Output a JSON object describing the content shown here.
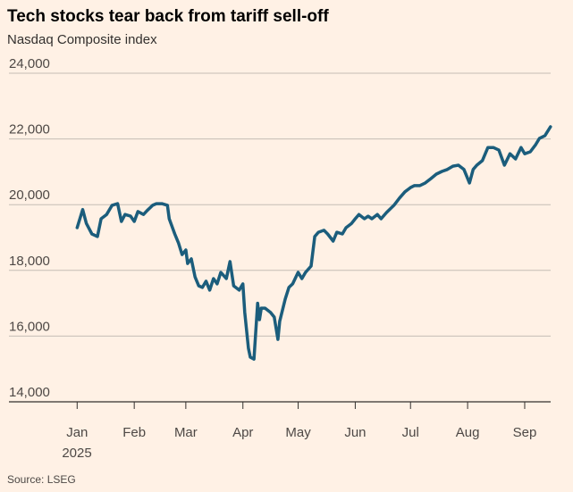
{
  "chart_data": {
    "type": "line",
    "title": "Tech stocks tear back from tariff sell-off",
    "subtitle": "Nasdaq Composite index",
    "source": "Source: LSEG",
    "year_label": "2025",
    "xlim": [
      -5,
      260
    ],
    "xticks": [
      {
        "value": 0,
        "label": "Jan"
      },
      {
        "value": 31,
        "label": "Feb"
      },
      {
        "value": 59,
        "label": "Mar"
      },
      {
        "value": 90,
        "label": "Apr"
      },
      {
        "value": 120,
        "label": "May"
      },
      {
        "value": 151,
        "label": "Jun"
      },
      {
        "value": 181,
        "label": "Jul"
      },
      {
        "value": 212,
        "label": "Aug"
      },
      {
        "value": 243,
        "label": "Sep"
      }
    ],
    "ylim": [
      14000,
      24000
    ],
    "yticks": [
      {
        "value": 14000,
        "label": "14,000"
      },
      {
        "value": 16000,
        "label": "16,000"
      },
      {
        "value": 18000,
        "label": "18,000"
      },
      {
        "value": 20000,
        "label": "20,000"
      },
      {
        "value": 22000,
        "label": "22,000"
      },
      {
        "value": 24000,
        "label": "24,000"
      }
    ],
    "grid": true,
    "x": [
      0,
      3,
      5,
      8,
      11,
      13,
      16,
      19,
      22,
      24,
      26,
      29,
      31,
      33,
      36,
      38,
      41,
      43,
      46,
      49,
      50,
      53,
      55,
      57,
      59,
      60,
      62,
      64,
      66,
      68,
      70,
      72,
      74,
      76,
      78,
      81,
      83,
      85,
      88,
      90,
      91,
      93,
      94,
      96,
      98,
      99,
      100,
      102,
      105,
      107,
      109,
      110,
      113,
      115,
      117,
      120,
      122,
      124,
      127,
      129,
      131,
      134,
      136,
      139,
      141,
      144,
      146,
      149,
      151,
      153,
      156,
      158,
      160,
      163,
      165,
      168,
      172,
      175,
      178,
      181,
      183,
      186,
      189,
      192,
      195,
      198,
      201,
      204,
      207,
      210,
      213,
      215,
      217,
      220,
      223,
      226,
      229,
      232,
      235,
      238,
      241,
      243,
      246,
      249,
      251,
      254,
      257
    ],
    "series": [
      {
        "name": "Nasdaq Composite",
        "color": "#1b5d7c",
        "values": [
          19300,
          19850,
          19430,
          19110,
          19030,
          19570,
          19700,
          19980,
          20030,
          19490,
          19700,
          19650,
          19490,
          19790,
          19700,
          19820,
          19980,
          20030,
          20030,
          19980,
          19570,
          19110,
          18840,
          18480,
          18620,
          18210,
          18350,
          17800,
          17530,
          17480,
          17670,
          17400,
          17750,
          17590,
          17940,
          17750,
          18270,
          17530,
          17400,
          17590,
          16720,
          15630,
          15360,
          15300,
          17000,
          16500,
          16850,
          16850,
          16720,
          16580,
          15900,
          16450,
          17130,
          17480,
          17590,
          17940,
          17750,
          17940,
          18130,
          19030,
          19160,
          19220,
          19110,
          18890,
          19160,
          19110,
          19300,
          19430,
          19570,
          19700,
          19570,
          19650,
          19570,
          19700,
          19570,
          19760,
          19980,
          20200,
          20390,
          20520,
          20580,
          20580,
          20660,
          20790,
          20930,
          21010,
          21070,
          21170,
          21200,
          21070,
          20660,
          21070,
          21200,
          21340,
          21740,
          21740,
          21660,
          21200,
          21550,
          21390,
          21740,
          21550,
          21610,
          21830,
          22020,
          22100,
          22370
        ]
      }
    ]
  }
}
